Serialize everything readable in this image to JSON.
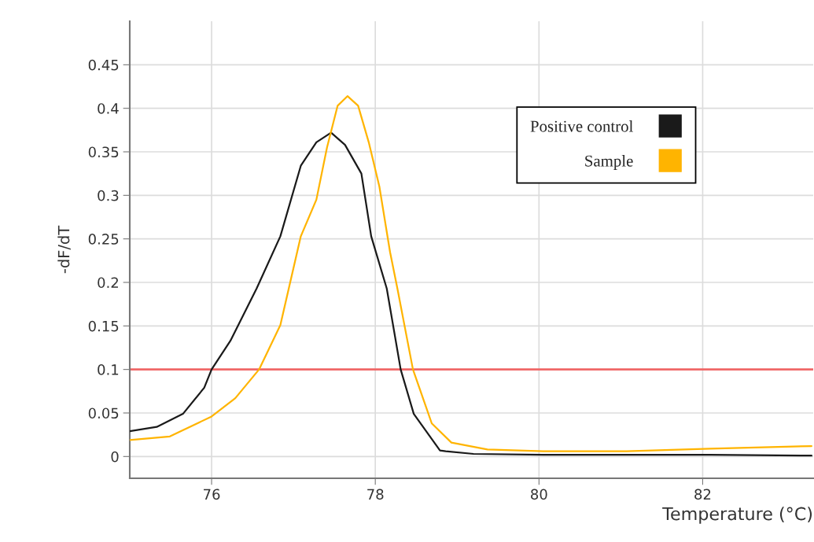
{
  "chart_data": {
    "type": "line",
    "xlabel": "Temperature (°C)",
    "ylabel": "-dF/dT",
    "xlim": [
      75,
      83.35
    ],
    "ylim": [
      -0.025,
      0.5
    ],
    "xticks": [
      76,
      78,
      80,
      82
    ],
    "yticks": [
      0,
      0.05,
      0.1,
      0.15,
      0.2,
      0.25,
      0.3,
      0.35,
      0.4,
      0.45
    ],
    "grid": true,
    "legend": "top right",
    "marker": "none",
    "line_style": "solid",
    "ref_lines": [
      {
        "axis": "y",
        "value": 0.1,
        "color": "#f06868"
      }
    ],
    "series": [
      {
        "name": "Positive control",
        "color": "#1a1a1a",
        "x": [
          75.0,
          75.33,
          75.65,
          75.91,
          76.0,
          76.23,
          76.55,
          76.84,
          77.09,
          77.28,
          77.46,
          77.63,
          77.83,
          77.95,
          78.14,
          78.31,
          78.47,
          78.79,
          78.86,
          79.2,
          80.05,
          82.09,
          83.33
        ],
        "values": [
          0.029,
          0.034,
          0.049,
          0.079,
          0.1,
          0.133,
          0.193,
          0.253,
          0.334,
          0.361,
          0.372,
          0.358,
          0.325,
          0.253,
          0.193,
          0.1,
          0.049,
          0.007,
          0.006,
          0.003,
          0.002,
          0.002,
          0.001
        ]
      },
      {
        "name": "Sample",
        "color": "#ffb400",
        "x": [
          75.0,
          75.49,
          76.0,
          76.29,
          76.58,
          76.84,
          77.09,
          77.28,
          77.41,
          77.54,
          77.66,
          77.79,
          77.92,
          78.05,
          78.18,
          78.27,
          78.46,
          78.69,
          78.93,
          79.37,
          80.05,
          81.07,
          82.09,
          83.33
        ],
        "values": [
          0.019,
          0.023,
          0.046,
          0.067,
          0.1,
          0.151,
          0.253,
          0.295,
          0.355,
          0.403,
          0.414,
          0.403,
          0.361,
          0.31,
          0.235,
          0.193,
          0.1,
          0.038,
          0.016,
          0.008,
          0.006,
          0.006,
          0.009,
          0.012
        ]
      }
    ]
  }
}
